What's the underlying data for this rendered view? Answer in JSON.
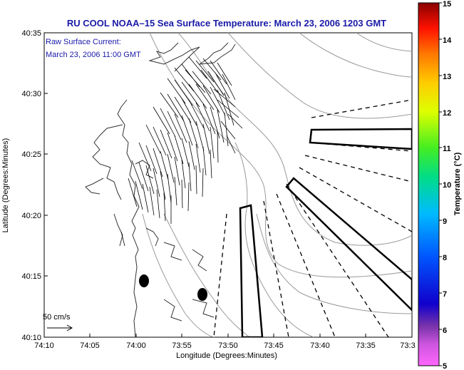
{
  "title": "RU COOL  NOAA–15  Sea Surface Temperature:  March 23, 2006 1203 GMT",
  "annotation": {
    "line1": "Raw Surface Current:",
    "line2": "March 23, 2006 11:00 GMT"
  },
  "axes": {
    "xlabel": "Longitude (Degrees:Minutes)",
    "ylabel": "Latitude (Degrees:Minutes)",
    "x_ticks": [
      "74:10",
      "74:05",
      "74:00",
      "73:55",
      "73:50",
      "73:45",
      "73:40",
      "73:35",
      "73:3"
    ],
    "y_ticks": [
      "40:35",
      "40:30",
      "40:25",
      "40:20",
      "40:15",
      "40:10"
    ]
  },
  "scale_vector": {
    "label": "50 cm/s"
  },
  "colorbar": {
    "label": "Temperature (°C)",
    "ticks": [
      "15",
      "14",
      "13",
      "12",
      "11",
      "10",
      "9",
      "8",
      "7",
      "6",
      "5"
    ],
    "colors": [
      "#ff66ff",
      "#9933cc",
      "#0000cc",
      "#0066ff",
      "#00ccff",
      "#00cc66",
      "#66ff33",
      "#ffff00",
      "#ff9900",
      "#ff3300",
      "#990000"
    ]
  }
}
